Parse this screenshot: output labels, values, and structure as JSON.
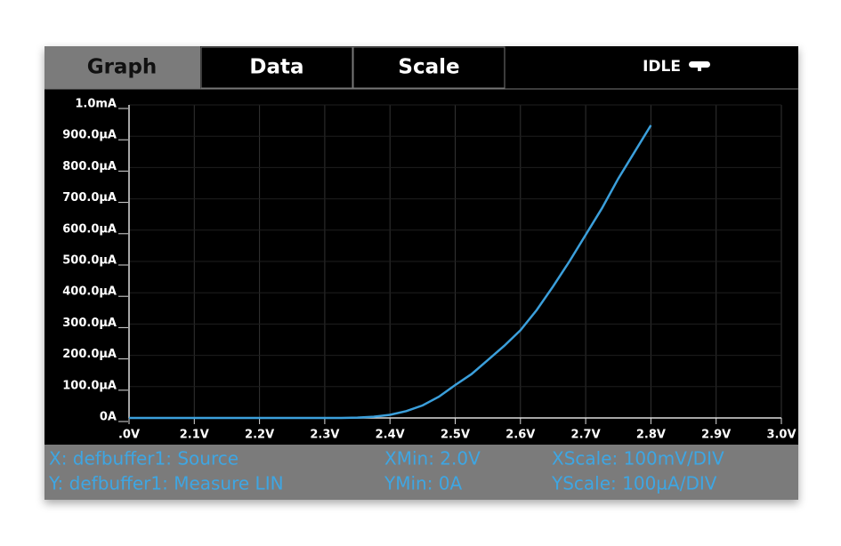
{
  "tabs": [
    "Graph",
    "Data",
    "Scale"
  ],
  "status": "IDLE",
  "footer": {
    "x_source": "X: defbuffer1: Source",
    "x_min": "XMin: 2.0V",
    "x_scale": "XScale: 100mV/DIV",
    "y_source": "Y: defbuffer1: Measure LIN",
    "y_min": "YMin: 0A",
    "y_scale": "YScale: 100µA/DIV"
  },
  "chart_data": {
    "type": "line",
    "color": "#3b9fdb",
    "grid": true,
    "x": [
      2.0,
      2.1,
      2.2,
      2.3,
      2.325,
      2.35,
      2.375,
      2.4,
      2.425,
      2.45,
      2.475,
      2.5,
      2.525,
      2.55,
      2.575,
      2.6,
      2.625,
      2.65,
      2.675,
      2.7,
      2.725,
      2.75,
      2.775,
      2.8
    ],
    "values": [
      0,
      0,
      0,
      0,
      0,
      1,
      4,
      10,
      22,
      40,
      68,
      105,
      140,
      185,
      230,
      280,
      345,
      420,
      500,
      585,
      670,
      765,
      850,
      935
    ],
    "xlim": [
      2.0,
      3.0
    ],
    "xticks": [
      {
        "value": 2.0,
        "label": ".0V"
      },
      {
        "value": 2.1,
        "label": "2.1V"
      },
      {
        "value": 2.2,
        "label": "2.2V"
      },
      {
        "value": 2.3,
        "label": "2.3V"
      },
      {
        "value": 2.4,
        "label": "2.4V"
      },
      {
        "value": 2.5,
        "label": "2.5V"
      },
      {
        "value": 2.6,
        "label": "2.6V"
      },
      {
        "value": 2.7,
        "label": "2.7V"
      },
      {
        "value": 2.8,
        "label": "2.8V"
      },
      {
        "value": 2.9,
        "label": "2.9V"
      },
      {
        "value": 3.0,
        "label": "3.0V"
      }
    ],
    "ylim": [
      0,
      1000
    ],
    "yticks": [
      {
        "value": 0,
        "label": "0A"
      },
      {
        "value": 100,
        "label": "100.0µA"
      },
      {
        "value": 200,
        "label": "200.0µA"
      },
      {
        "value": 300,
        "label": "300.0µA"
      },
      {
        "value": 400,
        "label": "400.0µA"
      },
      {
        "value": 500,
        "label": "500.0µA"
      },
      {
        "value": 600,
        "label": "600.0µA"
      },
      {
        "value": 700,
        "label": "700.0µA"
      },
      {
        "value": 800,
        "label": "800.0µA"
      },
      {
        "value": 900,
        "label": "900.0µA"
      },
      {
        "value": 1000,
        "label": "1.0mA"
      }
    ]
  }
}
